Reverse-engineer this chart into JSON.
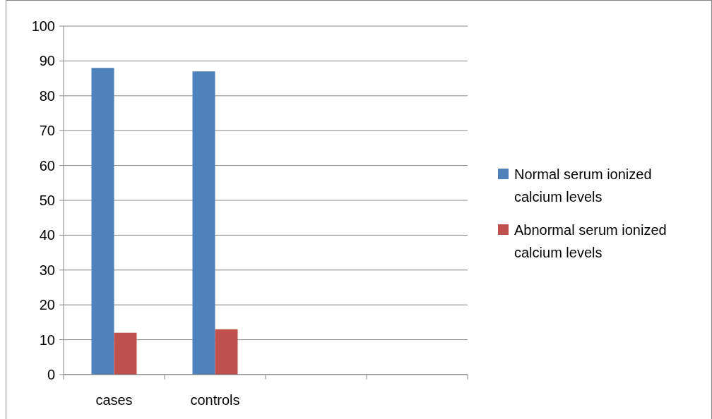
{
  "chart_data": {
    "type": "bar",
    "categories": [
      "cases",
      "controls",
      null,
      null
    ],
    "series": [
      {
        "name": "Normal serum ionized calcium levels",
        "color": "#4f81bd",
        "values": [
          88,
          87,
          null,
          null
        ]
      },
      {
        "name": "Abnormal serum ionized calcium levels",
        "color": "#c0504d",
        "values": [
          12,
          13,
          null,
          null
        ]
      }
    ],
    "ylim": [
      0,
      100
    ],
    "yticks": [
      0,
      10,
      20,
      30,
      40,
      50,
      60,
      70,
      80,
      90,
      100
    ],
    "grid": "y",
    "legend": "right"
  }
}
